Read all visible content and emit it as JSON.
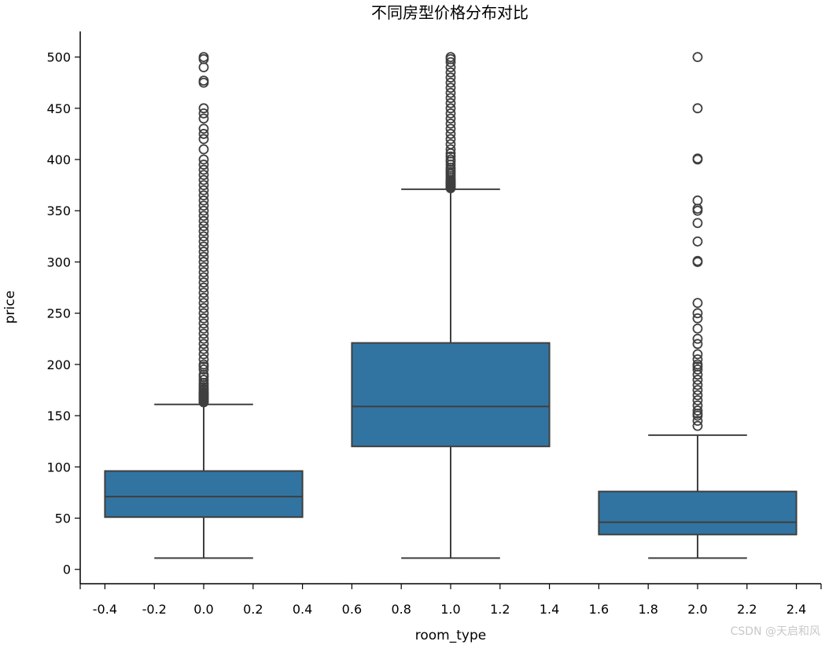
{
  "chart_data": {
    "type": "box",
    "title": "不同房型价格分布对比",
    "xlabel": "room_type",
    "ylabel": "price",
    "xlim": [
      -0.5,
      2.5
    ],
    "ylim": [
      -14,
      525
    ],
    "x_ticks": [
      -0.4,
      -0.2,
      0.0,
      0.2,
      0.4,
      0.6,
      0.8,
      1.0,
      1.2,
      1.4,
      1.6,
      1.8,
      2.0,
      2.2,
      2.4
    ],
    "x_tick_labels": [
      "-0.4",
      "-0.2",
      "0.0",
      "0.2",
      "0.4",
      "0.6",
      "0.8",
      "1.0",
      "1.2",
      "1.4",
      "1.6",
      "1.8",
      "2.0",
      "2.2",
      "2.4"
    ],
    "y_ticks": [
      0,
      50,
      100,
      150,
      200,
      250,
      300,
      350,
      400,
      450,
      500
    ],
    "y_tick_labels": [
      "0",
      "50",
      "100",
      "150",
      "200",
      "250",
      "300",
      "350",
      "400",
      "450",
      "500"
    ],
    "box_color": "#3274a1",
    "line_color": "#3f3f3f",
    "boxes": [
      {
        "position": 0,
        "whisker_low": 11,
        "q1": 51,
        "median": 71,
        "q3": 96,
        "whisker_high": 161,
        "outliers": [
          163,
          164,
          165,
          166,
          167,
          168,
          169,
          170,
          171,
          172,
          173,
          175,
          176,
          178,
          180,
          182,
          185,
          188,
          190,
          195,
          198,
          200,
          205,
          210,
          215,
          220,
          225,
          230,
          235,
          240,
          245,
          250,
          255,
          260,
          265,
          270,
          275,
          280,
          285,
          290,
          295,
          300,
          305,
          310,
          315,
          320,
          325,
          330,
          335,
          340,
          345,
          350,
          355,
          360,
          365,
          370,
          375,
          380,
          385,
          390,
          395,
          400,
          410,
          420,
          425,
          430,
          440,
          445,
          450,
          475,
          477,
          490,
          498,
          500
        ]
      },
      {
        "position": 1,
        "whisker_low": 11,
        "q1": 120,
        "median": 159,
        "q3": 221,
        "whisker_high": 371,
        "outliers": [
          372,
          373,
          374,
          375,
          376,
          377,
          378,
          379,
          380,
          382,
          384,
          386,
          388,
          390,
          392,
          395,
          398,
          400,
          403,
          406,
          410,
          415,
          420,
          425,
          430,
          435,
          440,
          445,
          450,
          455,
          460,
          465,
          470,
          475,
          480,
          485,
          490,
          495,
          498,
          500
        ]
      },
      {
        "position": 2,
        "whisker_low": 11,
        "q1": 34,
        "median": 46,
        "q3": 76,
        "whisker_high": 131,
        "outliers": [
          140,
          145,
          150,
          152,
          155,
          160,
          165,
          170,
          175,
          180,
          185,
          190,
          195,
          198,
          200,
          205,
          210,
          220,
          225,
          235,
          245,
          250,
          260,
          300,
          301,
          320,
          338,
          350,
          352,
          360,
          400,
          401,
          450,
          500
        ]
      }
    ]
  },
  "watermark": "CSDN @天启和风"
}
